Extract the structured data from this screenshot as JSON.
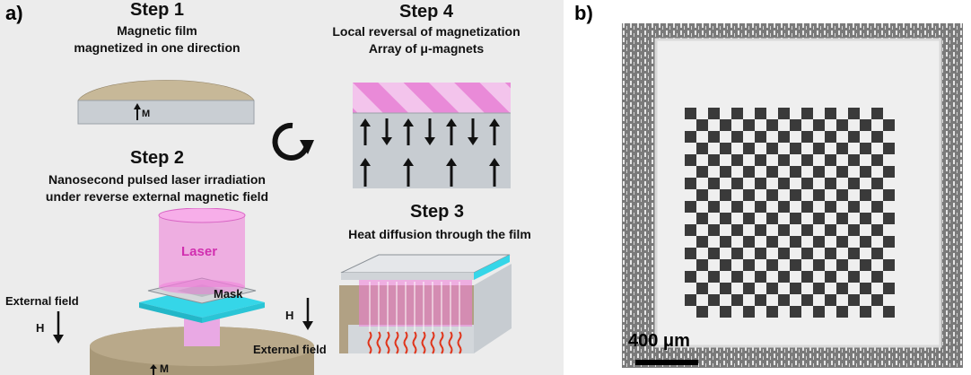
{
  "panel_a": {
    "label": "a)",
    "step1": {
      "title": "Step 1",
      "line1": "Magnetic film",
      "line2": "magnetized in one direction",
      "m_label": "M"
    },
    "step2": {
      "title": "Step 2",
      "line1": "Nanosecond pulsed laser irradiation",
      "line2": "under reverse external magnetic field",
      "laser_label": "Laser",
      "mask_label": "Mask",
      "field_label": "External field",
      "h_label": "H",
      "m_label": "M"
    },
    "step3": {
      "title": "Step 3",
      "line1": "Heat diffusion through the film",
      "h_label": "H",
      "field_label": "External field"
    },
    "step4": {
      "title": "Step 4",
      "line1": "Local reversal of magnetization",
      "line2": "Array of μ-magnets"
    }
  },
  "panel_b": {
    "label": "b)",
    "scale_bar": "400 μm",
    "checkerboard": {
      "rows": 18,
      "cols": 18
    }
  },
  "colors": {
    "film": "#b9a98a",
    "substrate": "#c9ced3",
    "laser": "#f07cd9",
    "cyan": "#35d6e8",
    "arrow": "#111111"
  }
}
